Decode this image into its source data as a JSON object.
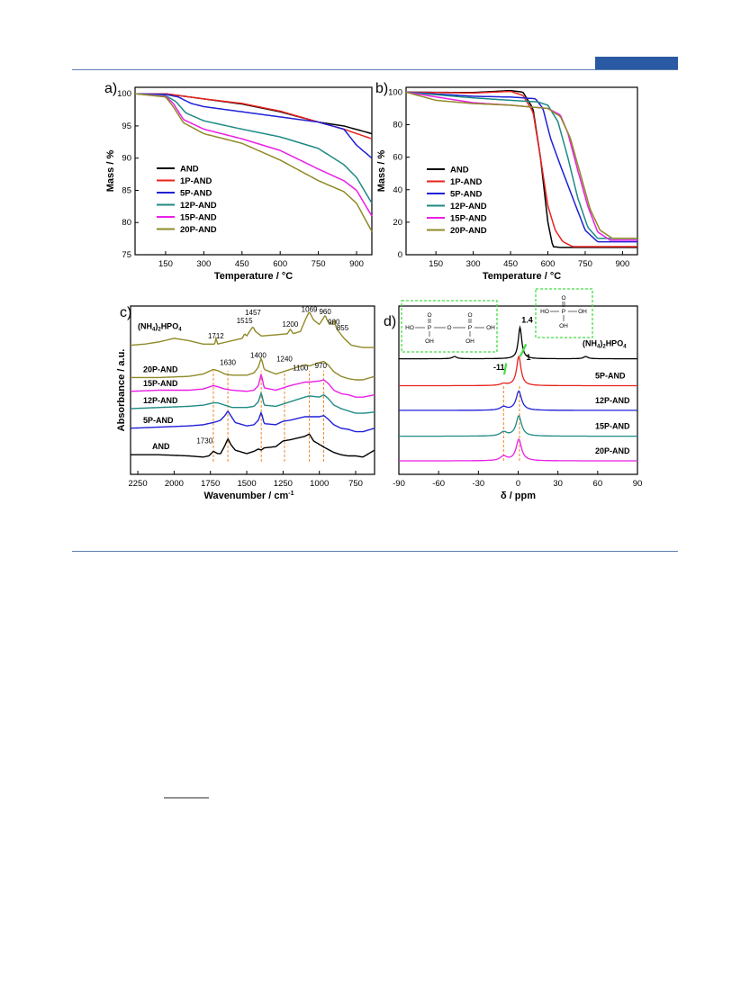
{
  "colors": {
    "AND": "#000000",
    "1P-AND": "#e8231e",
    "5P-AND": "#2020d8",
    "12P-AND": "#1e8a84",
    "15P-AND": "#ea1fe6",
    "20P-AND": "#8f8a28",
    "NH4": "#8f8a28",
    "page_rule": "#2a5aa3",
    "ref_line": "#f58220",
    "box": "#44dd44"
  },
  "chart_data": [
    {
      "type": "line",
      "panel": "a)",
      "xlabel": "Temperature / °C",
      "ylabel": "Mass / %",
      "xlim": [
        30,
        960
      ],
      "ylim": [
        75,
        101
      ],
      "xticks": [
        150,
        300,
        450,
        600,
        750,
        900
      ],
      "yticks": [
        75,
        80,
        85,
        90,
        95,
        100
      ],
      "legend_position": "lower-left",
      "series": [
        {
          "name": "AND",
          "color_key": "AND",
          "x": [
            30,
            150,
            300,
            450,
            600,
            750,
            850,
            960
          ],
          "y": [
            100,
            100,
            99.2,
            98.4,
            97.2,
            95.6,
            95,
            93.8
          ]
        },
        {
          "name": "1P-AND",
          "color_key": "1P-AND",
          "x": [
            30,
            150,
            300,
            450,
            600,
            750,
            850,
            960
          ],
          "y": [
            100,
            100,
            99.2,
            98.5,
            97.3,
            95.6,
            94.5,
            93
          ]
        },
        {
          "name": "5P-AND",
          "color_key": "5P-AND",
          "x": [
            30,
            150,
            200,
            250,
            300,
            450,
            600,
            750,
            850,
            900,
            960
          ],
          "y": [
            100,
            99.9,
            99.5,
            98.5,
            98,
            97.2,
            96.4,
            95.6,
            94.5,
            92,
            90
          ]
        },
        {
          "name": "12P-AND",
          "color_key": "12P-AND",
          "x": [
            30,
            150,
            190,
            230,
            300,
            450,
            600,
            750,
            850,
            900,
            960
          ],
          "y": [
            100,
            99.7,
            98.8,
            97,
            95.8,
            94.5,
            93.3,
            91.5,
            89,
            87,
            83
          ]
        },
        {
          "name": "15P-AND",
          "color_key": "15P-AND",
          "x": [
            30,
            150,
            180,
            220,
            300,
            450,
            600,
            750,
            850,
            900,
            960
          ],
          "y": [
            100,
            99.6,
            98.5,
            96,
            94.5,
            93,
            91.2,
            88.3,
            86.5,
            85,
            81
          ]
        },
        {
          "name": "20P-AND",
          "color_key": "20P-AND",
          "x": [
            30,
            150,
            180,
            220,
            300,
            450,
            600,
            750,
            850,
            900,
            960
          ],
          "y": [
            100,
            99.5,
            98,
            95.5,
            93.8,
            92.3,
            89.7,
            86.5,
            84.8,
            83,
            78.6
          ]
        }
      ]
    },
    {
      "type": "line",
      "panel": "b)",
      "xlabel": "Temperature / °C",
      "ylabel": "Mass / %",
      "xlim": [
        30,
        960
      ],
      "ylim": [
        0,
        103
      ],
      "xticks": [
        150,
        300,
        450,
        600,
        750,
        900
      ],
      "yticks": [
        0,
        20,
        40,
        60,
        80,
        100
      ],
      "legend_position": "lower-left",
      "series": [
        {
          "name": "AND",
          "color_key": "AND",
          "x": [
            30,
            300,
            450,
            500,
            540,
            570,
            600,
            620,
            650,
            960
          ],
          "y": [
            100,
            99.8,
            101,
            100,
            90,
            60,
            20,
            5,
            4.5,
            4.5
          ]
        },
        {
          "name": "1P-AND",
          "color_key": "1P-AND",
          "x": [
            30,
            300,
            450,
            500,
            540,
            570,
            600,
            630,
            660,
            700,
            960
          ],
          "y": [
            100,
            99.5,
            100.5,
            98,
            88,
            60,
            30,
            15,
            8,
            5,
            5
          ]
        },
        {
          "name": "5P-AND",
          "color_key": "5P-AND",
          "x": [
            30,
            300,
            450,
            550,
            580,
            610,
            650,
            700,
            750,
            800,
            960
          ],
          "y": [
            100,
            97.5,
            97,
            96,
            90,
            72,
            55,
            35,
            15,
            8,
            8
          ]
        },
        {
          "name": "12P-AND",
          "color_key": "12P-AND",
          "x": [
            30,
            300,
            450,
            560,
            600,
            640,
            680,
            720,
            760,
            800,
            960
          ],
          "y": [
            100,
            96.5,
            95,
            94,
            92,
            82,
            60,
            35,
            17,
            10,
            10
          ]
        },
        {
          "name": "15P-AND",
          "color_key": "15P-AND",
          "x": [
            30,
            300,
            450,
            600,
            650,
            680,
            720,
            760,
            800,
            850,
            960
          ],
          "y": [
            100,
            93.5,
            92,
            90,
            86,
            75,
            52,
            30,
            14,
            9,
            9
          ]
        },
        {
          "name": "20P-AND",
          "color_key": "20P-AND",
          "x": [
            30,
            150,
            300,
            450,
            600,
            650,
            690,
            730,
            770,
            810,
            860,
            960
          ],
          "y": [
            100,
            95,
            93,
            92,
            90,
            85,
            72,
            50,
            28,
            15,
            10,
            10
          ]
        }
      ]
    },
    {
      "type": "line",
      "panel": "c)",
      "xlabel": "Wavenumber / cm",
      "xlabel_sup": "-1",
      "ylabel": "Absorbance / a.u.",
      "xlim": [
        2300,
        620
      ],
      "xticks": [
        2250,
        2000,
        1750,
        1500,
        1250,
        1000,
        750
      ],
      "y_units": "arbitrary, stacked with vertical offsets",
      "ref_lines_x": [
        1730,
        1630,
        1400,
        1240,
        1069,
        970
      ],
      "peak_annotations": [
        {
          "text": "1712",
          "x": 1712
        },
        {
          "text": "1515",
          "x": 1515
        },
        {
          "text": "1457",
          "x": 1457
        },
        {
          "text": "1200",
          "x": 1200
        },
        {
          "text": "1069",
          "x": 1069
        },
        {
          "text": "960",
          "x": 960
        },
        {
          "text": "900",
          "x": 900
        },
        {
          "text": "855",
          "x": 840
        },
        {
          "text": "1400",
          "x": 1420
        },
        {
          "text": "1630",
          "x": 1630
        },
        {
          "text": "1240",
          "x": 1240
        },
        {
          "text": "1100",
          "x": 1130
        },
        {
          "text": "970",
          "x": 990
        },
        {
          "text": "1730",
          "x": 1790
        }
      ],
      "series": [
        {
          "name": "(NH4)2HPO4",
          "color_key": "NH4",
          "offset": 5.3,
          "x": [
            2300,
            2200,
            2100,
            2000,
            1900,
            1800,
            1720,
            1712,
            1700,
            1600,
            1530,
            1515,
            1500,
            1470,
            1457,
            1440,
            1400,
            1300,
            1220,
            1200,
            1180,
            1130,
            1090,
            1069,
            1040,
            1000,
            980,
            960,
            940,
            910,
            900,
            880,
            855,
            830,
            780,
            700,
            620
          ],
          "y": [
            0.3,
            0.35,
            0.45,
            0.6,
            0.5,
            0.35,
            0.35,
            0.6,
            0.35,
            0.5,
            0.6,
            0.8,
            0.7,
            1.0,
            1.1,
            0.9,
            0.7,
            0.75,
            0.8,
            1.0,
            0.8,
            0.9,
            1.5,
            1.75,
            1.4,
            1.2,
            1.4,
            1.6,
            1.3,
            1.2,
            1.4,
            1.0,
            0.8,
            0.6,
            0.3,
            0.2,
            0.2
          ]
        },
        {
          "name": "20P-AND",
          "color_key": "20P-AND",
          "offset": 3.75,
          "x": [
            2300,
            2100,
            1900,
            1800,
            1730,
            1700,
            1650,
            1600,
            1500,
            1450,
            1420,
            1400,
            1380,
            1300,
            1250,
            1200,
            1100,
            1069,
            1000,
            970,
            940,
            900,
            850,
            800,
            750,
            700,
            620
          ],
          "y": [
            0.45,
            0.45,
            0.5,
            0.6,
            0.8,
            0.75,
            0.6,
            0.55,
            0.55,
            0.65,
            0.9,
            1.3,
            0.8,
            0.6,
            0.7,
            0.8,
            1.0,
            0.95,
            1.1,
            1.15,
            1.0,
            0.7,
            0.5,
            0.4,
            0.35,
            0.35,
            0.5
          ]
        },
        {
          "name": "15P-AND",
          "color_key": "15P-AND",
          "offset": 3.05,
          "x": [
            2300,
            2100,
            1900,
            1800,
            1730,
            1700,
            1650,
            1600,
            1500,
            1450,
            1420,
            1400,
            1380,
            1300,
            1250,
            1200,
            1100,
            1069,
            1000,
            970,
            940,
            900,
            850,
            800,
            750,
            700,
            620
          ],
          "y": [
            0.55,
            0.6,
            0.6,
            0.65,
            0.8,
            0.75,
            0.65,
            0.6,
            0.55,
            0.6,
            0.8,
            1.3,
            0.7,
            0.6,
            0.7,
            0.8,
            0.95,
            0.95,
            1.0,
            1.05,
            0.9,
            0.6,
            0.45,
            0.4,
            0.3,
            0.3,
            0.4
          ]
        },
        {
          "name": "12P-AND",
          "color_key": "12P-AND",
          "offset": 2.35,
          "x": [
            2300,
            2100,
            1900,
            1800,
            1730,
            1700,
            1650,
            1600,
            1500,
            1450,
            1420,
            1400,
            1380,
            1300,
            1250,
            1200,
            1100,
            1069,
            1000,
            970,
            940,
            900,
            850,
            800,
            750,
            700,
            620
          ],
          "y": [
            0.5,
            0.55,
            0.6,
            0.65,
            0.75,
            0.75,
            0.65,
            0.55,
            0.55,
            0.6,
            0.8,
            1.2,
            0.65,
            0.6,
            0.7,
            0.8,
            1.0,
            1.05,
            1.0,
            1.1,
            0.95,
            0.65,
            0.5,
            0.4,
            0.3,
            0.3,
            0.35
          ]
        },
        {
          "name": "5P-AND",
          "color_key": "5P-AND",
          "offset": 1.55,
          "x": [
            2300,
            2100,
            1900,
            1800,
            1730,
            1700,
            1680,
            1650,
            1630,
            1610,
            1580,
            1500,
            1450,
            1420,
            1400,
            1380,
            1300,
            1250,
            1200,
            1100,
            1069,
            1000,
            970,
            940,
            900,
            850,
            800,
            750,
            700,
            620
          ],
          "y": [
            0.45,
            0.5,
            0.55,
            0.6,
            0.7,
            0.75,
            0.8,
            1.0,
            1.2,
            1.0,
            0.7,
            0.55,
            0.6,
            0.8,
            1.15,
            0.65,
            0.6,
            0.75,
            0.8,
            0.95,
            0.95,
            0.95,
            1.0,
            0.85,
            0.6,
            0.45,
            0.4,
            0.3,
            0.3,
            0.45
          ]
        },
        {
          "name": "AND",
          "color_key": "AND",
          "offset": 0.55,
          "x": [
            2300,
            2100,
            1900,
            1800,
            1760,
            1730,
            1700,
            1680,
            1650,
            1630,
            1610,
            1580,
            1500,
            1450,
            1420,
            1400,
            1380,
            1300,
            1250,
            1200,
            1100,
            1069,
            1040,
            1000,
            960,
            900,
            850,
            800,
            750,
            700,
            620
          ],
          "y": [
            0.3,
            0.3,
            0.25,
            0.2,
            0.25,
            0.45,
            0.35,
            0.35,
            0.7,
            1.0,
            0.75,
            0.5,
            0.35,
            0.45,
            0.55,
            0.5,
            0.6,
            0.65,
            0.9,
            0.95,
            1.1,
            1.2,
            0.9,
            0.75,
            0.6,
            0.4,
            0.3,
            0.25,
            0.25,
            0.2,
            0.5
          ]
        }
      ]
    },
    {
      "type": "line",
      "panel": "d)",
      "xlabel": "δ / ppm",
      "xlim": [
        -90,
        90
      ],
      "xticks": [
        -90,
        -60,
        -30,
        0,
        30,
        60,
        90
      ],
      "y_units": "arbitrary, stacked with vertical offsets",
      "ref_lines_x": [
        -11,
        1
      ],
      "peak_annotations": [
        {
          "text": "1.4",
          "x": 1.4
        },
        {
          "text": "1",
          "x": 1
        },
        {
          "text": "-11",
          "x": -11
        }
      ],
      "series": [
        {
          "name": "(NH4)2HPO4",
          "color_key": "AND",
          "offset": 5.15,
          "peaks": [
            {
              "c": 1.4,
              "h": 1.4,
              "w": 1.6
            },
            {
              "c": -48,
              "h": 0.1,
              "w": 2
            },
            {
              "c": 51,
              "h": 0.1,
              "w": 2
            }
          ]
        },
        {
          "name": "5P-AND",
          "color_key": "1P-AND",
          "offset": 3.95,
          "peaks": [
            {
              "c": 0.5,
              "h": 1.3,
              "w": 2.0
            },
            {
              "c": -11,
              "h": 0.08,
              "w": 3
            }
          ]
        },
        {
          "name": "12P-AND",
          "color_key": "5P-AND",
          "offset": 2.85,
          "peaks": [
            {
              "c": 0.5,
              "h": 0.85,
              "w": 2.5
            },
            {
              "c": -11,
              "h": 0.15,
              "w": 3
            }
          ]
        },
        {
          "name": "15P-AND",
          "color_key": "12P-AND",
          "offset": 1.7,
          "peaks": [
            {
              "c": 0.5,
              "h": 0.9,
              "w": 2.5
            },
            {
              "c": -11,
              "h": 0.18,
              "w": 3
            }
          ]
        },
        {
          "name": "20P-AND",
          "color_key": "15P-AND",
          "offset": 0.6,
          "peaks": [
            {
              "c": 0.5,
              "h": 0.95,
              "w": 2.5
            },
            {
              "c": -11,
              "h": 0.2,
              "w": 3
            }
          ]
        }
      ],
      "structures": [
        {
          "atoms": [
            "O",
            "O",
            "HO",
            "P",
            "O",
            "P",
            "OH",
            "OH",
            "OH"
          ]
        },
        {
          "atoms": [
            "O",
            "HO",
            "P",
            "OH",
            "OH"
          ]
        }
      ]
    }
  ]
}
